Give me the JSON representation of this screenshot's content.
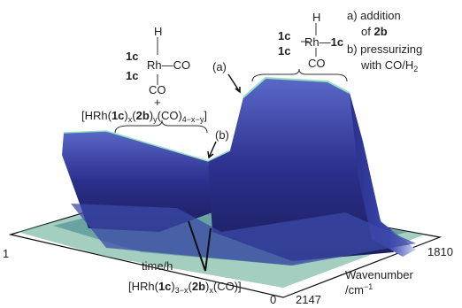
{
  "notes": {
    "a": {
      "label": "a) addition",
      "of": "of",
      "compound": "2b"
    },
    "b": {
      "label": "b) pressurizing",
      "with": "with CO/H",
      "sub": "2"
    }
  },
  "markers": {
    "a": "(a)",
    "b": "(b)"
  },
  "species": {
    "rh_co2": {
      "ligand_top": "1c",
      "ligand_bottom": "1c",
      "hydride": "H",
      "metal": "Rh",
      "co_right": "CO",
      "co_bottom": "CO",
      "plus": "+"
    },
    "rh_co1": {
      "ligand_top": "1c",
      "ligand_bottom": "1c",
      "hydride": "H",
      "metal": "Rh",
      "ligand_right": "1c",
      "co_bottom": "CO"
    },
    "mixed": {
      "open": "[HRh(",
      "l1": "1c",
      "c1": ")",
      "x": "x",
      "o2": "(",
      "l2": "2b",
      "c2": ")",
      "y": "y",
      "co": "(CO)",
      "n": "4−x−y",
      "close": "]"
    },
    "mono": {
      "open": "[HRh(",
      "l1": "1c",
      "c1": ")",
      "n1": "3−x",
      "o2": "(",
      "l2": "2b",
      "c2": ")",
      "x": "x",
      "close": "(CO)]"
    }
  },
  "axes": {
    "time": {
      "label": "time/h",
      "start": "1",
      "end": "0"
    },
    "wavenumber": {
      "label": "Wavenumber",
      "unit": "/cm",
      "exp": "−1",
      "start": "2147",
      "end": "1810"
    }
  }
}
